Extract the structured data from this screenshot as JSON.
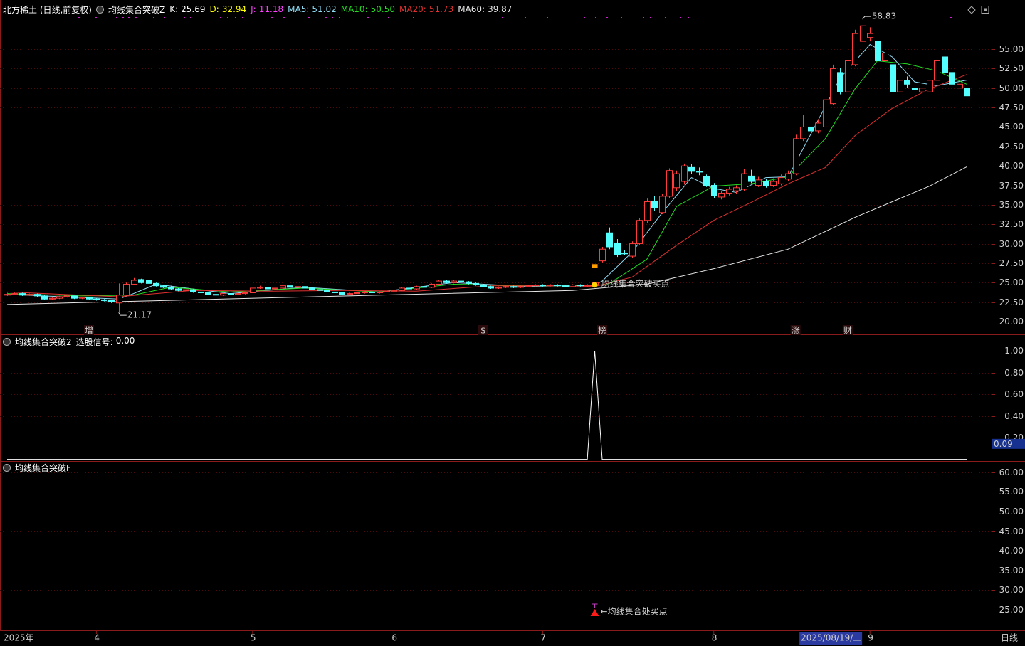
{
  "chart_data": [
    {
      "type": "candlestick",
      "title": "北方稀土 (日线,前复权)",
      "indicator": "均线集合突破Z",
      "readouts": [
        {
          "name": "K:",
          "value": 25.69,
          "color": "#ffffff"
        },
        {
          "name": "D:",
          "value": 32.94,
          "color": "#ffff00"
        },
        {
          "name": "J:",
          "value": 11.18,
          "color": "#ff40ff"
        }
      ],
      "up_color": "#ff3c3c",
      "down_color": "#54ffff",
      "ohlc": [
        [
          23.4,
          23.7,
          23.3,
          23.5
        ],
        [
          23.5,
          23.7,
          23.4,
          23.6
        ],
        [
          23.6,
          23.7,
          23.3,
          23.4
        ],
        [
          23.4,
          23.6,
          23.3,
          23.5
        ],
        [
          23.5,
          23.6,
          23.2,
          23.3
        ],
        [
          23.3,
          23.4,
          22.8,
          22.9
        ],
        [
          22.9,
          23.1,
          22.8,
          23.0
        ],
        [
          23.0,
          23.3,
          22.9,
          23.2
        ],
        [
          23.2,
          23.4,
          23.1,
          23.3
        ],
        [
          23.3,
          23.3,
          22.9,
          23.0
        ],
        [
          23.0,
          23.2,
          22.9,
          23.1
        ],
        [
          23.1,
          23.2,
          22.8,
          22.9
        ],
        [
          22.9,
          23.0,
          22.7,
          22.8
        ],
        [
          22.8,
          22.9,
          22.6,
          22.7
        ],
        [
          22.7,
          22.8,
          22.4,
          22.6
        ],
        [
          22.4,
          24.9,
          21.17,
          23.4
        ],
        [
          23.4,
          25.0,
          23.3,
          24.8
        ],
        [
          24.8,
          25.6,
          24.7,
          25.3
        ],
        [
          25.4,
          25.5,
          24.9,
          25.0
        ],
        [
          25.3,
          25.4,
          24.8,
          24.9
        ],
        [
          24.9,
          25.0,
          24.5,
          24.6
        ],
        [
          24.6,
          24.7,
          24.3,
          24.4
        ],
        [
          24.4,
          24.6,
          24.1,
          24.2
        ],
        [
          24.2,
          24.3,
          23.9,
          24.0
        ],
        [
          24.0,
          24.2,
          23.8,
          24.1
        ],
        [
          24.1,
          24.2,
          23.7,
          23.8
        ],
        [
          23.8,
          23.9,
          23.6,
          23.7
        ],
        [
          23.7,
          23.8,
          23.4,
          23.5
        ],
        [
          23.5,
          23.6,
          23.3,
          23.4
        ],
        [
          23.4,
          23.7,
          23.3,
          23.6
        ],
        [
          23.6,
          23.7,
          23.4,
          23.5
        ],
        [
          23.5,
          23.7,
          23.4,
          23.6
        ],
        [
          23.6,
          23.8,
          23.5,
          23.7
        ],
        [
          23.7,
          24.5,
          23.7,
          24.3
        ],
        [
          24.3,
          24.6,
          24.2,
          24.4
        ],
        [
          24.4,
          24.5,
          24.1,
          24.2
        ],
        [
          24.2,
          24.4,
          24.1,
          24.3
        ],
        [
          24.3,
          24.8,
          24.2,
          24.6
        ],
        [
          24.6,
          24.7,
          24.3,
          24.4
        ],
        [
          24.4,
          24.6,
          24.3,
          24.5
        ],
        [
          24.5,
          24.6,
          24.2,
          24.3
        ],
        [
          24.3,
          24.4,
          24.0,
          24.1
        ],
        [
          24.1,
          24.2,
          23.9,
          24.0
        ],
        [
          24.0,
          24.1,
          23.7,
          23.8
        ],
        [
          23.8,
          23.9,
          23.6,
          23.7
        ],
        [
          23.7,
          23.8,
          23.4,
          23.5
        ],
        [
          23.5,
          23.7,
          23.4,
          23.6
        ],
        [
          23.6,
          23.8,
          23.5,
          23.7
        ],
        [
          23.7,
          23.9,
          23.6,
          23.8
        ],
        [
          23.8,
          23.9,
          23.6,
          23.7
        ],
        [
          23.7,
          23.9,
          23.6,
          23.8
        ],
        [
          23.8,
          24.0,
          23.7,
          23.9
        ],
        [
          23.9,
          24.1,
          23.8,
          24.0
        ],
        [
          24.0,
          24.4,
          23.9,
          24.3
        ],
        [
          24.3,
          24.4,
          24.1,
          24.2
        ],
        [
          24.2,
          24.6,
          24.1,
          24.5
        ],
        [
          24.5,
          24.7,
          24.3,
          24.4
        ],
        [
          24.4,
          24.9,
          24.3,
          24.8
        ],
        [
          24.8,
          25.3,
          24.7,
          25.2
        ],
        [
          25.2,
          25.3,
          24.9,
          25.0
        ],
        [
          25.0,
          25.3,
          24.9,
          25.2
        ],
        [
          25.2,
          25.4,
          25.0,
          25.1
        ],
        [
          25.1,
          25.2,
          24.8,
          24.9
        ],
        [
          24.9,
          25.0,
          24.6,
          24.7
        ],
        [
          24.7,
          24.8,
          24.4,
          24.5
        ],
        [
          24.5,
          24.6,
          24.2,
          24.3
        ],
        [
          24.3,
          24.5,
          24.2,
          24.4
        ],
        [
          24.4,
          24.6,
          24.3,
          24.5
        ],
        [
          24.5,
          24.6,
          24.3,
          24.4
        ],
        [
          24.4,
          24.6,
          24.3,
          24.5
        ],
        [
          24.5,
          24.7,
          24.4,
          24.6
        ],
        [
          24.6,
          24.8,
          24.5,
          24.7
        ],
        [
          24.7,
          24.8,
          24.5,
          24.6
        ],
        [
          24.6,
          24.8,
          24.5,
          24.7
        ],
        [
          24.7,
          24.8,
          24.5,
          24.6
        ],
        [
          24.6,
          24.7,
          24.4,
          24.5
        ],
        [
          24.5,
          24.8,
          24.4,
          24.7
        ],
        [
          24.7,
          24.8,
          24.5,
          24.6
        ],
        [
          24.6,
          24.8,
          24.5,
          24.7
        ],
        [
          24.7,
          25.1,
          24.6,
          25.0
        ],
        [
          27.8,
          29.6,
          27.6,
          29.3
        ],
        [
          31.4,
          32.1,
          29.3,
          29.6
        ],
        [
          30.1,
          30.6,
          28.3,
          28.6
        ],
        [
          28.8,
          29.2,
          28.5,
          28.7
        ],
        [
          28.4,
          30.3,
          28.2,
          30.0
        ],
        [
          30.0,
          33.3,
          29.8,
          33.0
        ],
        [
          33.0,
          35.8,
          32.7,
          35.4
        ],
        [
          35.4,
          36.1,
          34.2,
          34.6
        ],
        [
          34.0,
          36.4,
          33.8,
          36.1
        ],
        [
          36.1,
          39.7,
          35.9,
          39.4
        ],
        [
          37.2,
          39.4,
          36.8,
          39.0
        ],
        [
          38.0,
          40.3,
          37.6,
          40.0
        ],
        [
          39.8,
          40.2,
          39.0,
          39.3
        ],
        [
          39.3,
          39.8,
          38.8,
          39.2
        ],
        [
          38.6,
          38.9,
          37.3,
          37.5
        ],
        [
          37.5,
          37.8,
          35.9,
          36.2
        ],
        [
          36.0,
          36.8,
          35.7,
          36.5
        ],
        [
          36.5,
          37.3,
          36.2,
          37.0
        ],
        [
          36.8,
          37.5,
          36.4,
          37.2
        ],
        [
          37.0,
          39.6,
          36.8,
          39.0
        ],
        [
          38.7,
          39.5,
          37.8,
          38.0
        ],
        [
          37.5,
          38.6,
          37.3,
          38.2
        ],
        [
          38.0,
          38.3,
          37.2,
          37.5
        ],
        [
          37.5,
          38.4,
          37.3,
          38.0
        ],
        [
          37.7,
          38.9,
          37.5,
          38.5
        ],
        [
          38.3,
          39.4,
          38.1,
          39.0
        ],
        [
          39.0,
          44.0,
          38.8,
          43.5
        ],
        [
          43.5,
          46.5,
          43.2,
          45.0
        ],
        [
          45.0,
          45.6,
          44.2,
          44.5
        ],
        [
          44.5,
          46.0,
          44.2,
          45.5
        ],
        [
          45.0,
          49.0,
          44.8,
          48.5
        ],
        [
          48.0,
          53.0,
          47.8,
          52.5
        ],
        [
          52.0,
          52.6,
          49.2,
          49.5
        ],
        [
          49.5,
          54.0,
          49.2,
          53.5
        ],
        [
          53.0,
          57.5,
          52.8,
          57.0
        ],
        [
          56.0,
          58.83,
          55.5,
          58.0
        ],
        [
          56.5,
          57.8,
          56.0,
          57.0
        ],
        [
          56.0,
          56.5,
          53.2,
          53.5
        ],
        [
          53.5,
          55.0,
          53.0,
          54.5
        ],
        [
          53.0,
          53.5,
          48.5,
          49.5
        ],
        [
          49.5,
          51.5,
          49.0,
          51.0
        ],
        [
          51.0,
          51.5,
          50.0,
          50.5
        ],
        [
          50.0,
          50.5,
          49.3,
          49.8
        ],
        [
          49.5,
          50.8,
          49.0,
          50.0
        ],
        [
          49.5,
          51.5,
          49.2,
          51.0
        ],
        [
          51.0,
          54.0,
          50.8,
          53.5
        ],
        [
          54.0,
          54.3,
          51.8,
          52.0
        ],
        [
          52.0,
          52.5,
          50.0,
          50.5
        ],
        [
          50.0,
          51.0,
          49.5,
          50.5
        ],
        [
          50.0,
          50.3,
          48.7,
          49.0
        ]
      ],
      "series": [
        {
          "name": "MA5:",
          "color": "#8fdcf5",
          "current": 51.02,
          "x": [
            0,
            10,
            15,
            17,
            20,
            30,
            40,
            50,
            60,
            70,
            79,
            80,
            84,
            88,
            92,
            95,
            98,
            102,
            105,
            109,
            112,
            116,
            119,
            122,
            125,
            129
          ],
          "values": [
            23.5,
            23.1,
            22.9,
            23.6,
            24.8,
            23.6,
            24.4,
            23.8,
            25.0,
            24.5,
            24.7,
            25.2,
            28.9,
            33.9,
            38.5,
            37.1,
            36.6,
            38.5,
            38.6,
            45.8,
            51.3,
            55.6,
            54.0,
            50.8,
            50.3,
            51.02
          ]
        },
        {
          "name": "MA10:",
          "color": "#22dd22",
          "current": 50.5,
          "current_label": "50.50",
          "x": [
            0,
            10,
            17,
            22,
            30,
            40,
            50,
            60,
            70,
            79,
            81,
            86,
            90,
            95,
            100,
            105,
            110,
            114,
            117,
            121,
            125,
            129
          ],
          "values": [
            23.6,
            23.3,
            23.4,
            24.4,
            23.8,
            24.3,
            23.8,
            24.8,
            24.6,
            24.6,
            24.9,
            28.0,
            34.8,
            37.4,
            37.7,
            38.6,
            43.5,
            49.9,
            53.5,
            53.1,
            52.2,
            50.5
          ]
        },
        {
          "name": "MA20:",
          "color": "#e03030",
          "current": 51.73,
          "x": [
            0,
            15,
            25,
            35,
            45,
            55,
            65,
            75,
            79,
            84,
            90,
            95,
            100,
            105,
            110,
            114,
            119,
            124,
            129
          ],
          "values": [
            23.8,
            23.2,
            24.0,
            23.9,
            24.0,
            23.9,
            24.6,
            24.6,
            24.5,
            25.7,
            29.8,
            33.0,
            35.3,
            37.7,
            39.8,
            43.9,
            47.4,
            49.9,
            51.73
          ]
        },
        {
          "name": "MA60:",
          "color": "#e6e6e6",
          "current": 39.87,
          "x": [
            0,
            37,
            76,
            86,
            95,
            105,
            114,
            124,
            129
          ],
          "values": [
            22.2,
            23.1,
            24.0,
            24.8,
            26.8,
            29.3,
            33.4,
            37.4,
            39.87
          ]
        }
      ],
      "ylim": [
        19.45,
        59.3
      ],
      "yticks": [
        {
          "value": 20,
          "label": "20.00"
        },
        {
          "value": 22.5,
          "label": "22.50"
        },
        {
          "value": 25,
          "label": "25.00"
        },
        {
          "value": 27.5,
          "label": "27.50"
        },
        {
          "value": 30,
          "label": "30.00"
        },
        {
          "value": 32.5,
          "label": "32.50"
        },
        {
          "value": 35,
          "label": "35.00"
        },
        {
          "value": 37.5,
          "label": "37.50"
        },
        {
          "value": 40,
          "label": "40.00"
        },
        {
          "value": 42.5,
          "label": "42.50"
        },
        {
          "value": 45,
          "label": "45.00"
        },
        {
          "value": 47.5,
          "label": "47.50"
        },
        {
          "value": 50,
          "label": "50.00"
        },
        {
          "value": 52.5,
          "label": "52.50"
        },
        {
          "value": 55,
          "label": "55.00"
        }
      ],
      "annotations": [
        {
          "x": 79,
          "text": "均线集合突破买点",
          "color": "#ffd400"
        }
      ],
      "events": [
        {
          "x": 11,
          "label": "增",
          "color": "#ff6060"
        },
        {
          "x": 64,
          "label": "$",
          "color": "#ff4040"
        },
        {
          "x": 80,
          "label": "榜",
          "color": "#ffd400"
        },
        {
          "x": 106,
          "label": "涨",
          "color": "#ff5050"
        },
        {
          "x": 113,
          "label": "财",
          "color": "#7fb0ff"
        }
      ]
    },
    {
      "type": "line",
      "title": "均线集合突破2",
      "readouts": [
        {
          "name": "选股信号:",
          "value": 0,
          "label": "0.00",
          "color": "#ffffff"
        }
      ],
      "series": [
        {
          "color": "#ffffff",
          "x": [
            0,
            78,
            79,
            80,
            129
          ],
          "values": [
            0,
            0,
            1,
            0,
            0
          ]
        }
      ],
      "cursor_value": 0.09,
      "ylim": [
        -0.016,
        1.138
      ],
      "yticks": [
        {
          "value": 0.2,
          "label": "0.20"
        },
        {
          "value": 0.4,
          "label": "0.40"
        },
        {
          "value": 0.6,
          "label": "0.60"
        },
        {
          "value": 0.8,
          "label": "0.80"
        },
        {
          "value": 1,
          "label": "1.00"
        }
      ]
    },
    {
      "type": "marker",
      "title": "均线集合突破F",
      "markers": [
        {
          "x": 79,
          "value": 23.9,
          "color": "#ff1a1a",
          "text": "←均线集合处买点"
        }
      ],
      "ylim": [
        19.74,
        62.5
      ],
      "yticks": [
        {
          "value": 25,
          "label": "25.00"
        },
        {
          "value": 30,
          "label": "30.00"
        },
        {
          "value": 35,
          "label": "35.00"
        },
        {
          "value": 40,
          "label": "40.00"
        },
        {
          "value": 45,
          "label": "45.00"
        },
        {
          "value": 50,
          "label": "50.00"
        },
        {
          "value": 55,
          "label": "55.00"
        },
        {
          "value": 60,
          "label": "60.00"
        }
      ]
    }
  ],
  "time_axis": {
    "labels": [
      {
        "x": 0,
        "label": "2025年"
      },
      {
        "x": 12,
        "label": "4"
      },
      {
        "x": 33,
        "label": "5"
      },
      {
        "x": 52,
        "label": "6"
      },
      {
        "x": 72,
        "label": "7"
      },
      {
        "x": 95,
        "label": "8"
      },
      {
        "x": 116,
        "label": "9"
      }
    ],
    "cursor": {
      "x": 107,
      "label": "2025/08/19/二"
    },
    "period": "日线"
  }
}
